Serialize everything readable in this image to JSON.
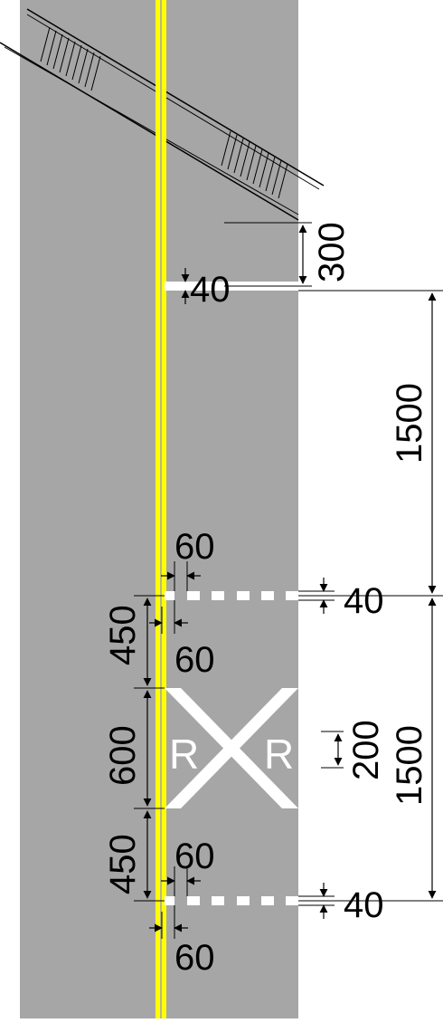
{
  "diagram": {
    "colors": {
      "pavement": "#a6a6a6",
      "centerline": "#ffff00",
      "markings": "#ffffff",
      "lines": "#000000"
    },
    "dimensions": {
      "setback_from_track": "300",
      "stop_line_width": "40",
      "upper_spacing": "1500",
      "lower_spacing": "1500",
      "dash_upper_gap_top": "60",
      "dash_upper_gap_bottom": "60",
      "dash_lower_gap_top": "60",
      "dash_lower_gap_bottom": "60",
      "upper_transverse_width": "40",
      "lower_transverse_width": "40",
      "upper_offset": "450",
      "symbol_length": "600",
      "lower_offset": "450",
      "letter_height": "200"
    },
    "symbol": {
      "left_letter": "R",
      "right_letter": "R"
    }
  }
}
